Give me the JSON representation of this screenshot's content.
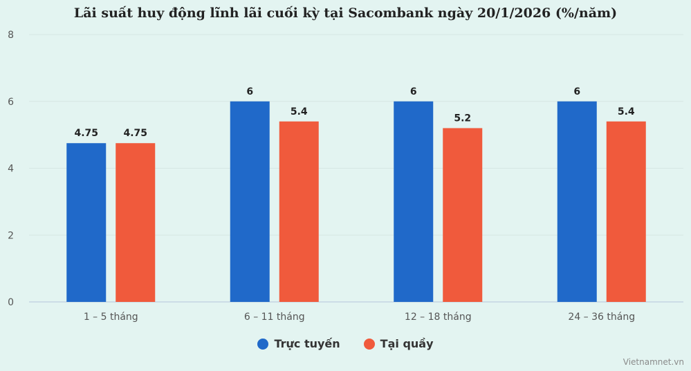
{
  "chart_data": {
    "type": "bar",
    "title": "Lãi suất huy động lĩnh lãi cuối kỳ tại Sacombank ngày 20/1/2026 (%/năm)",
    "categories": [
      "1 – 5 tháng",
      "6 – 11 tháng",
      "12 – 18 tháng",
      "24 – 36 tháng"
    ],
    "series": [
      {
        "name": "Trực tuyến",
        "color": "#2069c9",
        "values": [
          4.75,
          6,
          6,
          6
        ]
      },
      {
        "name": "Tại quầy",
        "color": "#f05a3c",
        "values": [
          4.75,
          5.4,
          5.2,
          5.4
        ]
      }
    ],
    "data_labels": [
      [
        "4.75",
        "6",
        "6",
        "6"
      ],
      [
        "4.75",
        "5.4",
        "5.2",
        "5.4"
      ]
    ],
    "ylim": [
      0,
      8
    ],
    "yticks": [
      "0",
      "2",
      "4",
      "6",
      "8"
    ],
    "grid": true,
    "legend_position": "bottom"
  },
  "legend": {
    "items": [
      {
        "label": "Trực tuyến",
        "color": "#2069c9"
      },
      {
        "label": "Tại quầy",
        "color": "#f05a3c"
      }
    ]
  },
  "watermark": "Vietnamnet.vn"
}
